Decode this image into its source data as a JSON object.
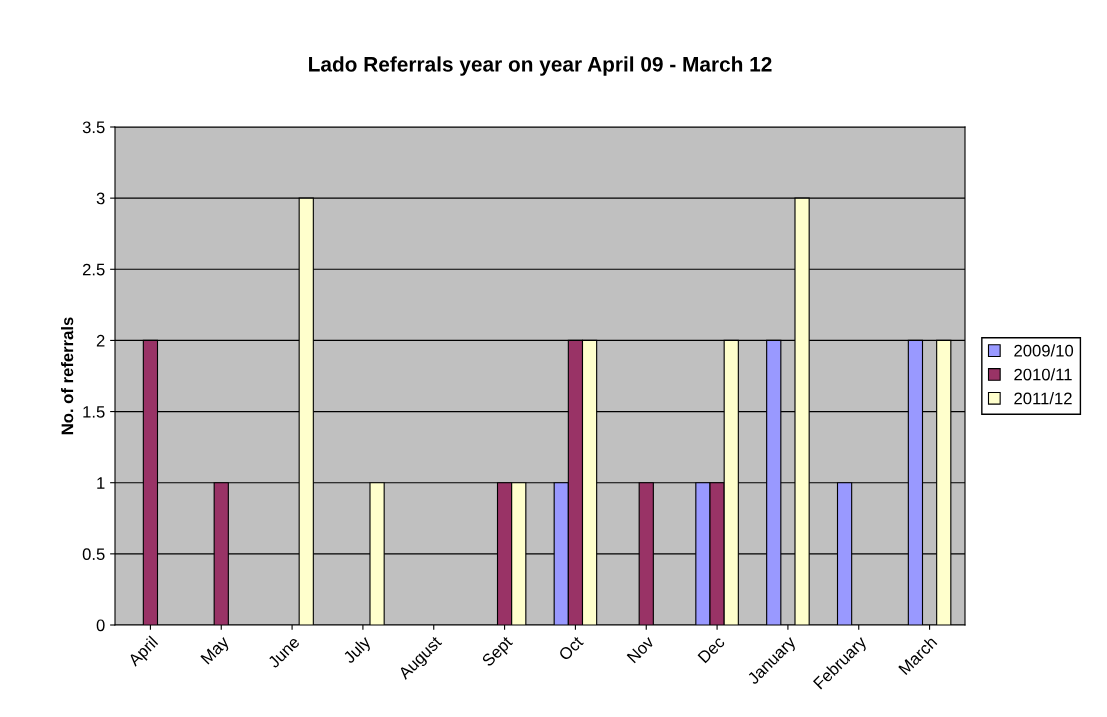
{
  "chart_data": {
    "type": "bar",
    "title": "Lado Referrals year on year April 09 - March 12",
    "ylabel": "No. of referrals",
    "categories": [
      "April",
      "May",
      "June",
      "July",
      "August",
      "Sept",
      "Oct",
      "Nov",
      "Dec",
      "January",
      "February",
      "March"
    ],
    "series": [
      {
        "name": "2009/10",
        "color": "#9999ff",
        "values": [
          null,
          null,
          null,
          null,
          null,
          null,
          1,
          null,
          1,
          2,
          1,
          2
        ]
      },
      {
        "name": "2010/11",
        "color": "#993366",
        "values": [
          2,
          1,
          null,
          null,
          null,
          1,
          2,
          1,
          1,
          null,
          null,
          null
        ]
      },
      {
        "name": "2011/12",
        "color": "#ffffcc",
        "values": [
          null,
          null,
          3,
          1,
          null,
          1,
          2,
          null,
          2,
          3,
          null,
          2
        ]
      }
    ],
    "ylim": [
      0,
      3.5
    ],
    "yticks": [
      0,
      0.5,
      1,
      1.5,
      2,
      2.5,
      3,
      3.5
    ],
    "grid": "y",
    "legend": "right"
  }
}
